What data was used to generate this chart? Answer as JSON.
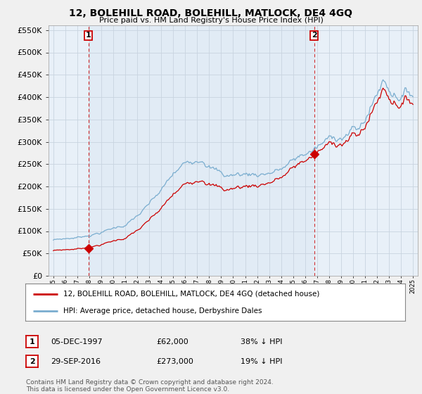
{
  "title": "12, BOLEHILL ROAD, BOLEHILL, MATLOCK, DE4 4GQ",
  "subtitle": "Price paid vs. HM Land Registry's House Price Index (HPI)",
  "legend_line1": "12, BOLEHILL ROAD, BOLEHILL, MATLOCK, DE4 4GQ (detached house)",
  "legend_line2": "HPI: Average price, detached house, Derbyshire Dales",
  "sale1_date": "05-DEC-1997",
  "sale1_price": "£62,000",
  "sale1_hpi": "38% ↓ HPI",
  "sale1_year": 1997.92,
  "sale1_value": 62000,
  "sale2_date": "29-SEP-2016",
  "sale2_price": "£273,000",
  "sale2_hpi": "19% ↓ HPI",
  "sale2_year": 2016.75,
  "sale2_value": 273000,
  "sale_color": "#cc0000",
  "hpi_color": "#7aadcf",
  "vline_color": "#cc0000",
  "label_box_color": "#cc0000",
  "plot_bg_color": "#e8f0f8",
  "between_bg_color": "#dce8f4",
  "ylim": [
    0,
    560000
  ],
  "yticks": [
    0,
    50000,
    100000,
    150000,
    200000,
    250000,
    300000,
    350000,
    400000,
    450000,
    500000,
    550000
  ],
  "footer": "Contains HM Land Registry data © Crown copyright and database right 2024.\nThis data is licensed under the Open Government Licence v3.0.",
  "background_color": "#f0f0f0",
  "grid_color": "#c8d4e0"
}
